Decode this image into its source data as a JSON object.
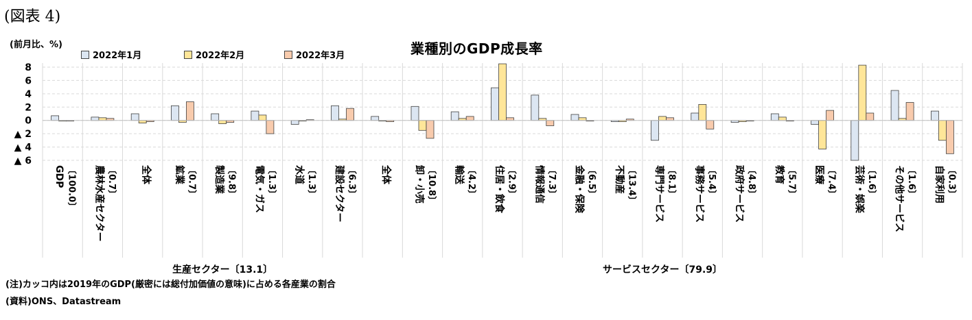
{
  "figure_label": "(図表 4)",
  "note": "(注)カッコ内は2019年のGDP(厳密には総付加価値の意味)に占める各産業の割合",
  "source": "(資料)ONS、Datastream",
  "colors": {
    "jan": "#dce6f2",
    "feb": "#ffe699",
    "mar": "#f8cbad",
    "border": "#404040",
    "grid": "#d9d9d9"
  },
  "chart_data": {
    "type": "bar",
    "title": "業種別のGDP成長率",
    "ylabel": "(前月比、%)",
    "ylim": [
      -6,
      8
    ],
    "yticks": [
      {
        "value": 8,
        "label": "8"
      },
      {
        "value": 6,
        "label": "6"
      },
      {
        "value": 4,
        "label": "4"
      },
      {
        "value": 2,
        "label": "2"
      },
      {
        "value": 0,
        "label": "0"
      },
      {
        "value": -2,
        "label": "▲ 2"
      },
      {
        "value": -4,
        "label": "▲ 4"
      },
      {
        "value": -6,
        "label": "▲ 6"
      }
    ],
    "categories": [
      {
        "name": "GDP",
        "share": "〔100.0〕"
      },
      {
        "name": "農林水産セクター",
        "share": "〔0.7〕"
      },
      {
        "name": "全体",
        "share": ""
      },
      {
        "name": "鉱業",
        "share": "〔0.7〕"
      },
      {
        "name": "製造業",
        "share": "〔9.8〕"
      },
      {
        "name": "電気・ガス",
        "share": "〔1.3〕"
      },
      {
        "name": "水道",
        "share": "〔1.3〕"
      },
      {
        "name": "建設セクター",
        "share": "〔6.3〕"
      },
      {
        "name": "全体",
        "share": ""
      },
      {
        "name": "卸・小売",
        "share": "〔10.8〕"
      },
      {
        "name": "輸送",
        "share": "〔4.2〕"
      },
      {
        "name": "住居・飲食",
        "share": "〔2.9〕"
      },
      {
        "name": "情報通信",
        "share": "〔7.3〕"
      },
      {
        "name": "金融・保険",
        "share": "〔6.5〕"
      },
      {
        "name": "不動産",
        "share": "〔13.4〕"
      },
      {
        "name": "専門サービス",
        "share": "〔8.1〕"
      },
      {
        "name": "事務サービス",
        "share": "〔5.4〕"
      },
      {
        "name": "政府サービス",
        "share": "〔4.8〕"
      },
      {
        "name": "教育",
        "share": "〔5.7〕"
      },
      {
        "name": "医療",
        "share": "〔7.4〕"
      },
      {
        "name": "芸術・娯楽",
        "share": "〔1.6〕"
      },
      {
        "name": "その他サービス",
        "share": "〔1.6〕"
      },
      {
        "name": "自家利用",
        "share": "〔0.3〕"
      }
    ],
    "series": [
      {
        "name": "2022年1月",
        "color": "#dce6f2",
        "values": [
          0.7,
          0.5,
          1.0,
          2.2,
          1.0,
          1.4,
          -0.6,
          2.2,
          0.6,
          2.1,
          1.3,
          4.9,
          3.8,
          0.9,
          -0.2,
          -3.0,
          1.1,
          -0.3,
          1.0,
          -0.6,
          -6.0,
          4.5,
          1.4
        ]
      },
      {
        "name": "2022年2月",
        "color": "#ffe699",
        "values": [
          -0.1,
          0.4,
          -0.4,
          -0.3,
          -0.5,
          0.8,
          0.0,
          0.2,
          0.0,
          -1.5,
          0.3,
          8.5,
          0.3,
          0.4,
          -0.2,
          0.6,
          2.4,
          -0.2,
          0.5,
          -4.3,
          8.3,
          0.3,
          -3.0
        ]
      },
      {
        "name": "2022年3月",
        "color": "#f8cbad",
        "values": [
          -0.1,
          0.3,
          -0.2,
          2.8,
          -0.3,
          -2.0,
          0.1,
          1.8,
          -0.2,
          -2.7,
          0.6,
          0.4,
          -0.8,
          -0.1,
          0.2,
          0.4,
          -1.3,
          -0.1,
          -0.1,
          1.5,
          1.1,
          2.7,
          -5.0
        ]
      }
    ],
    "groups": [
      {
        "label": "生産セクター〔13.1〕",
        "start": 2,
        "end": 6
      },
      {
        "label": "サービスセクター〔79.9〕",
        "start": 8,
        "end": 22
      }
    ],
    "legend_position": "top-left",
    "grid": true
  }
}
